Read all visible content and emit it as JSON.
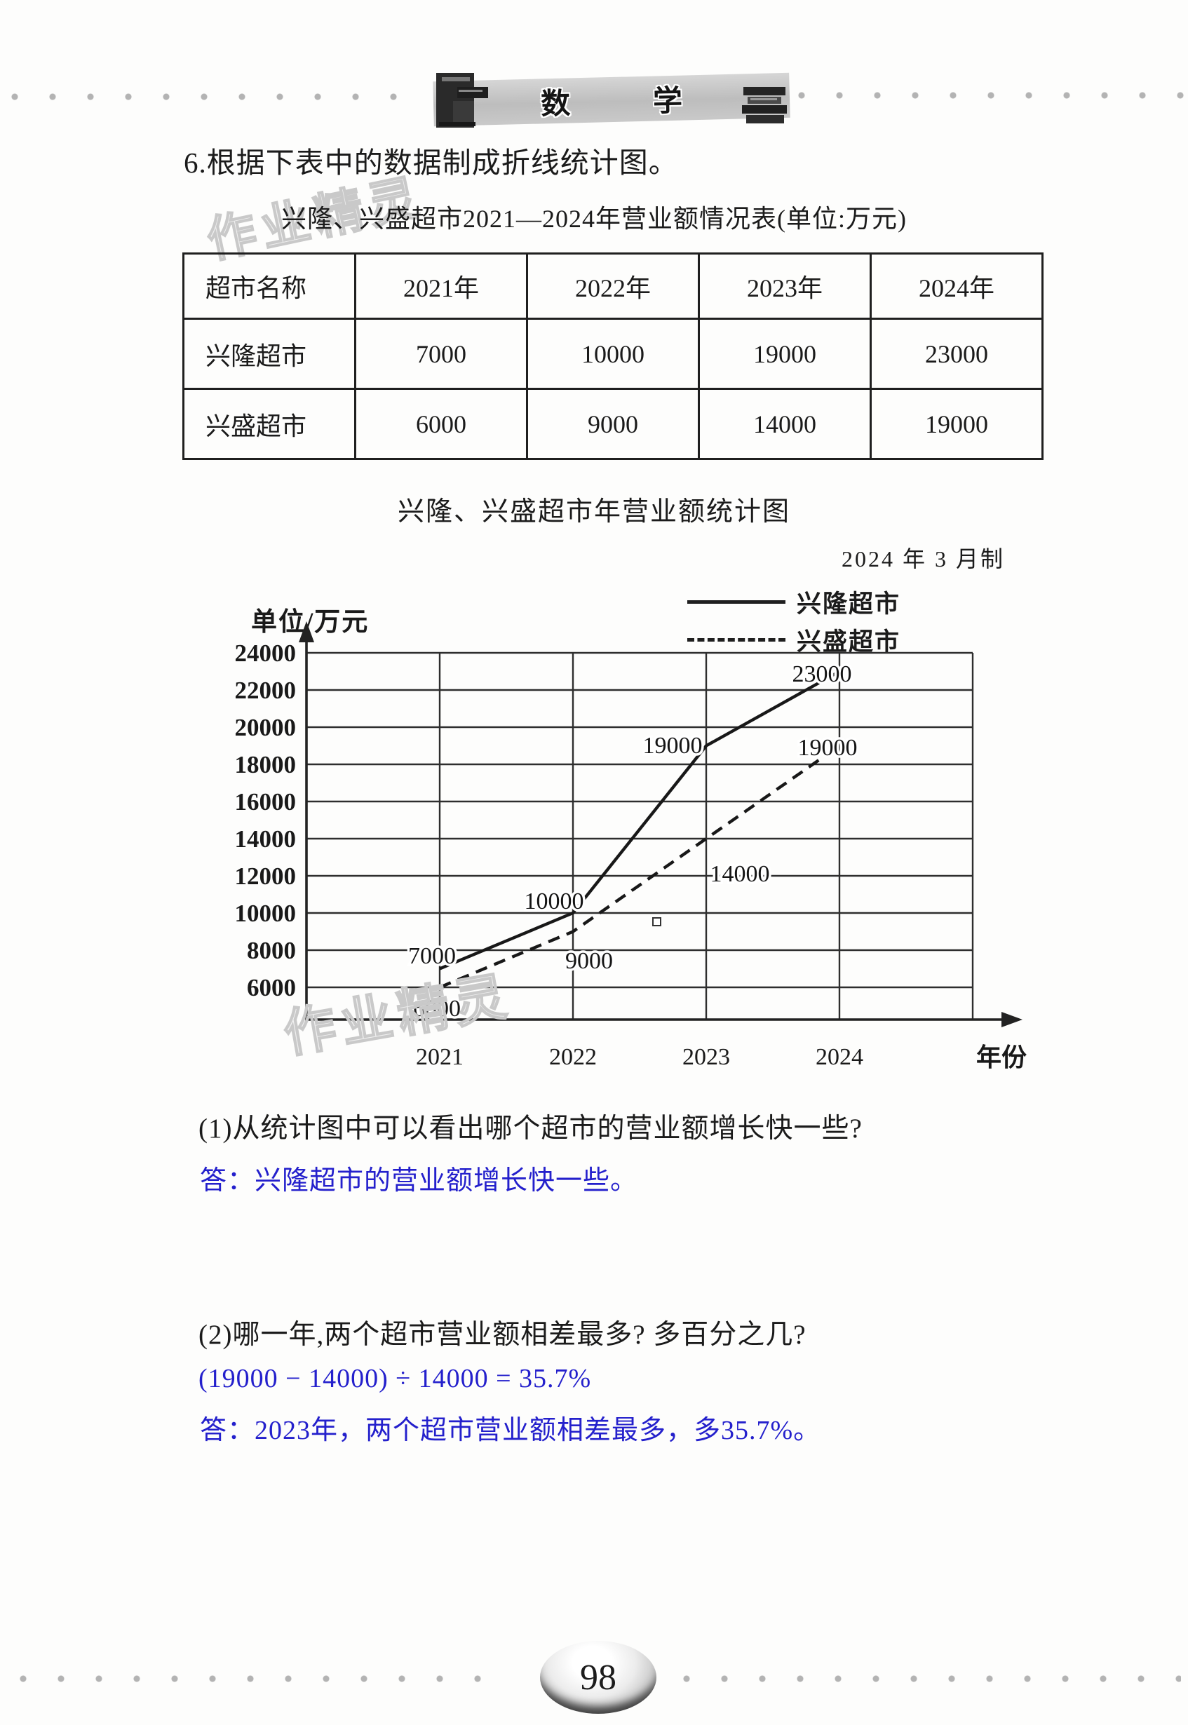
{
  "header": {
    "banner_char_1": "数",
    "banner_char_2": "学"
  },
  "problem": {
    "statement": "6.根据下表中的数据制成折线统计图。"
  },
  "watermark_text": "作业精灵",
  "table": {
    "title": "兴隆、兴盛超市2021—2024年营业额情况表(单位:万元)",
    "columns": [
      "超市名称",
      "2021年",
      "2022年",
      "2023年",
      "2024年"
    ],
    "rows": [
      {
        "name": "兴隆超市",
        "values": [
          "7000",
          "10000",
          "19000",
          "23000"
        ]
      },
      {
        "name": "兴盛超市",
        "values": [
          "6000",
          "9000",
          "14000",
          "19000"
        ]
      }
    ]
  },
  "chart_data": {
    "type": "line",
    "title": "兴隆、兴盛超市年营业额统计图",
    "date_note": "2024 年 3 月制",
    "unit_label": "单位/万元",
    "xlabel": "年份",
    "categories": [
      "2021",
      "2022",
      "2023",
      "2024"
    ],
    "series": [
      {
        "name": "兴隆超市",
        "style": "solid",
        "values": [
          7000,
          10000,
          19000,
          23000
        ]
      },
      {
        "name": "兴盛超市",
        "style": "dashed",
        "values": [
          6000,
          9000,
          14000,
          19000
        ]
      }
    ],
    "ylim": [
      6000,
      24000
    ],
    "ytick_step": 2000,
    "grid": true,
    "legend_position": "top-right"
  },
  "questions": {
    "q1": "(1)从统计图中可以看出哪个超市的营业额增长快一些?",
    "a1": "答：兴隆超市的营业额增长快一些。",
    "q2": "(2)哪一年,两个超市营业额相差最多? 多百分之几?",
    "a2_formula": "(19000 − 14000) ÷ 14000 = 35.7%",
    "a2": "答：2023年，两个超市营业额相差最多，多35.7%。"
  },
  "footer": {
    "page_number": "98"
  },
  "colors": {
    "answer_blue": "#2420cc",
    "ink": "#1b1b1b",
    "grid": "#2e2e2e",
    "watermark": "#c9c9c9"
  }
}
